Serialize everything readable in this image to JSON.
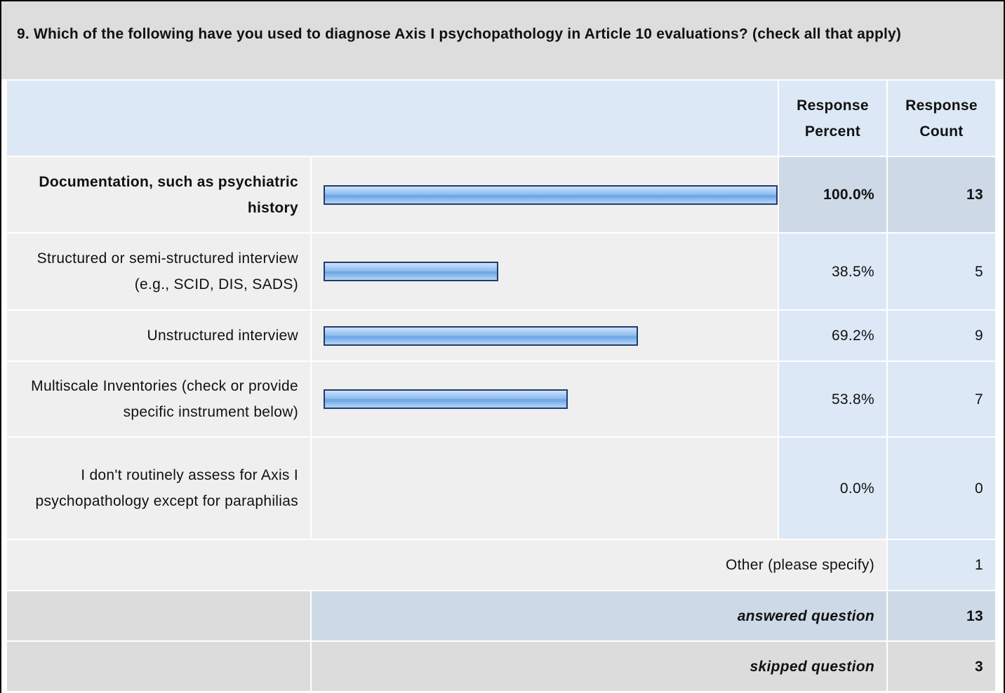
{
  "question": "9. Which of the following have you used to diagnose Axis I psychopathology in Article 10 evaluations? (check all that apply)",
  "headers": {
    "percent": "Response Percent",
    "count": "Response Count"
  },
  "rows": [
    {
      "label": "Documentation, such as psychiatric history",
      "percent": 100.0,
      "percent_label": "100.0%",
      "count": 13
    },
    {
      "label": "Structured or semi-structured interview (e.g., SCID, DIS, SADS)",
      "percent": 38.5,
      "percent_label": "38.5%",
      "count": 5
    },
    {
      "label": "Unstructured interview",
      "percent": 69.2,
      "percent_label": "69.2%",
      "count": 9
    },
    {
      "label": "Multiscale Inventories (check or provide specific instrument below)",
      "percent": 53.8,
      "percent_label": "53.8%",
      "count": 7
    },
    {
      "label": "I don't routinely assess for Axis I psychopathology except for paraphilias",
      "percent": 0.0,
      "percent_label": "0.0%",
      "count": 0
    }
  ],
  "other": {
    "label": "Other (please specify)",
    "count": 1
  },
  "answered": {
    "label": "answered question",
    "count": 13
  },
  "skipped": {
    "label": "skipped question",
    "count": 3
  }
}
